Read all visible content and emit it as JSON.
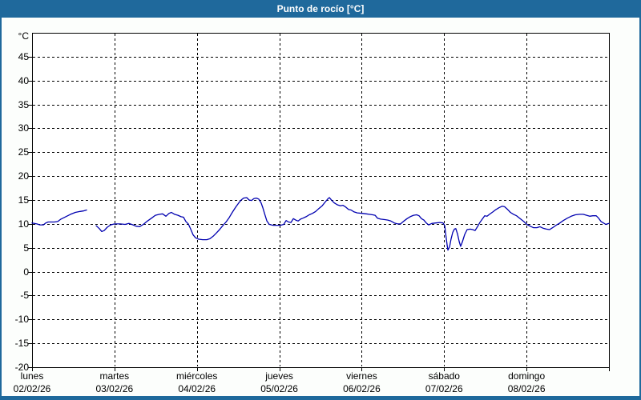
{
  "window": {
    "title": "Punto de rocío [°C]",
    "title_bar_color": "#1f699c",
    "frame_color": "#1f699c",
    "surface_color": "#fcfefc"
  },
  "chart_data": {
    "type": "line",
    "title": "Punto de rocío [°C]",
    "ylabel": "°C",
    "ylim": [
      -20,
      50
    ],
    "ytick_step": 5,
    "ytick_labels": [
      45,
      40,
      35,
      30,
      25,
      20,
      15,
      10,
      5,
      0,
      -5,
      -10,
      -15,
      -20
    ],
    "grid": "dashed",
    "line_color": "#0000b0",
    "plot_bg": "#ffffff",
    "x_axis": {
      "total_hours": 168,
      "days": [
        {
          "name": "lunes",
          "date": "02/02/26"
        },
        {
          "name": "martes",
          "date": "03/02/26"
        },
        {
          "name": "miércoles",
          "date": "04/02/26"
        },
        {
          "name": "jueves",
          "date": "05/02/26"
        },
        {
          "name": "viernes",
          "date": "06/02/26"
        },
        {
          "name": "sábado",
          "date": "07/02/26"
        },
        {
          "name": "domingo",
          "date": "08/02/26"
        }
      ]
    },
    "series": [
      {
        "name": "Punto de rocío",
        "unit": "°C",
        "segments": [
          [
            [
              0,
              10.2
            ],
            [
              1.4,
              10.0
            ],
            [
              2.3,
              9.8
            ],
            [
              3.3,
              9.8
            ],
            [
              4.0,
              10.2
            ],
            [
              4.7,
              10.4
            ],
            [
              6.5,
              10.4
            ],
            [
              7.5,
              10.5
            ],
            [
              8.4,
              11.0
            ],
            [
              9.8,
              11.5
            ],
            [
              11.2,
              12.0
            ],
            [
              12.6,
              12.4
            ],
            [
              14.0,
              12.6
            ],
            [
              14.9,
              12.7
            ],
            [
              15.9,
              12.9
            ]
          ],
          [
            [
              18.7,
              9.6
            ],
            [
              19.6,
              9.0
            ],
            [
              20.3,
              8.4
            ],
            [
              21.0,
              8.6
            ],
            [
              21.9,
              9.3
            ],
            [
              22.9,
              9.8
            ],
            [
              24.0,
              10.0
            ],
            [
              25.7,
              10.0
            ],
            [
              27.1,
              9.9
            ],
            [
              28.2,
              10.1
            ],
            [
              29.4,
              9.8
            ],
            [
              30.3,
              9.5
            ],
            [
              31.3,
              9.4
            ],
            [
              32.4,
              9.9
            ],
            [
              33.6,
              10.6
            ],
            [
              34.8,
              11.2
            ],
            [
              35.9,
              11.8
            ],
            [
              37.1,
              12.0
            ],
            [
              38.0,
              12.1
            ],
            [
              39.0,
              11.6
            ],
            [
              39.9,
              12.2
            ],
            [
              40.6,
              12.4
            ],
            [
              41.5,
              12.0
            ],
            [
              42.5,
              11.8
            ],
            [
              43.4,
              11.5
            ],
            [
              44.1,
              11.4
            ],
            [
              44.8,
              10.5
            ],
            [
              45.5,
              10.0
            ],
            [
              46.2,
              8.9
            ],
            [
              46.9,
              7.7
            ],
            [
              47.6,
              7.1
            ],
            [
              48.5,
              6.8
            ],
            [
              49.7,
              6.7
            ],
            [
              50.9,
              6.7
            ],
            [
              51.8,
              6.9
            ],
            [
              52.7,
              7.4
            ],
            [
              53.7,
              8.1
            ],
            [
              54.6,
              8.8
            ],
            [
              55.5,
              9.6
            ],
            [
              56.5,
              10.4
            ],
            [
              57.4,
              11.3
            ],
            [
              58.3,
              12.4
            ],
            [
              59.3,
              13.5
            ],
            [
              60.2,
              14.4
            ],
            [
              60.9,
              15.0
            ],
            [
              61.6,
              15.4
            ],
            [
              62.5,
              15.5
            ],
            [
              63.2,
              15.0
            ],
            [
              63.9,
              14.9
            ],
            [
              64.6,
              15.3
            ],
            [
              65.3,
              15.4
            ],
            [
              66.0,
              15.2
            ],
            [
              66.7,
              14.4
            ],
            [
              67.2,
              13.4
            ],
            [
              67.7,
              12.2
            ],
            [
              68.4,
              10.6
            ],
            [
              69.1,
              9.9
            ],
            [
              70.2,
              9.7
            ],
            [
              72.3,
              9.7
            ],
            [
              73.3,
              9.9
            ],
            [
              74.0,
              10.7
            ],
            [
              74.7,
              10.4
            ],
            [
              75.4,
              10.3
            ],
            [
              76.1,
              11.1
            ],
            [
              76.8,
              10.8
            ],
            [
              77.5,
              10.6
            ],
            [
              78.2,
              11.0
            ],
            [
              78.9,
              11.2
            ],
            [
              79.8,
              11.5
            ],
            [
              80.7,
              11.9
            ],
            [
              81.7,
              12.2
            ],
            [
              82.6,
              12.6
            ],
            [
              83.5,
              13.2
            ],
            [
              84.5,
              13.8
            ],
            [
              85.4,
              14.6
            ],
            [
              86.1,
              15.2
            ],
            [
              86.6,
              15.5
            ],
            [
              87.3,
              14.9
            ],
            [
              88.0,
              14.4
            ],
            [
              88.9,
              14.0
            ],
            [
              89.8,
              13.8
            ],
            [
              90.5,
              13.9
            ],
            [
              91.2,
              13.6
            ],
            [
              92.2,
              13.0
            ],
            [
              92.9,
              12.9
            ],
            [
              93.8,
              12.5
            ],
            [
              94.7,
              12.3
            ],
            [
              96.1,
              12.2
            ],
            [
              97.3,
              12.1
            ],
            [
              98.2,
              12.0
            ],
            [
              99.2,
              11.9
            ],
            [
              99.9,
              11.8
            ],
            [
              100.6,
              11.2
            ],
            [
              101.5,
              11.0
            ],
            [
              102.7,
              10.9
            ],
            [
              103.6,
              10.8
            ],
            [
              104.5,
              10.6
            ],
            [
              105.5,
              10.2
            ],
            [
              106.4,
              10.0
            ],
            [
              107.3,
              10.0
            ],
            [
              108.3,
              10.6
            ],
            [
              109.2,
              11.1
            ],
            [
              110.1,
              11.5
            ],
            [
              111.1,
              11.8
            ],
            [
              112.0,
              11.9
            ],
            [
              112.7,
              11.7
            ],
            [
              113.4,
              11.1
            ],
            [
              114.1,
              10.8
            ],
            [
              114.8,
              10.2
            ],
            [
              115.5,
              9.8
            ],
            [
              116.4,
              10.1
            ],
            [
              117.6,
              10.2
            ],
            [
              118.8,
              10.3
            ],
            [
              119.7,
              10.2
            ],
            [
              120.2,
              9.6
            ],
            [
              120.4,
              8.2
            ],
            [
              120.9,
              5.5
            ],
            [
              121.1,
              4.5
            ],
            [
              121.6,
              5.2
            ],
            [
              122.0,
              6.8
            ],
            [
              122.5,
              8.2
            ],
            [
              123.0,
              8.9
            ],
            [
              123.4,
              9.0
            ],
            [
              123.9,
              7.9
            ],
            [
              124.4,
              6.3
            ],
            [
              124.8,
              5.3
            ],
            [
              125.3,
              6.2
            ],
            [
              126.0,
              7.8
            ],
            [
              126.7,
              8.8
            ],
            [
              127.6,
              8.9
            ],
            [
              128.3,
              8.8
            ],
            [
              129.0,
              8.6
            ],
            [
              129.7,
              9.4
            ],
            [
              130.4,
              10.3
            ],
            [
              131.1,
              11.0
            ],
            [
              131.8,
              11.7
            ],
            [
              132.5,
              11.6
            ],
            [
              133.2,
              12.0
            ],
            [
              134.2,
              12.5
            ],
            [
              135.1,
              13.0
            ],
            [
              136.0,
              13.4
            ],
            [
              136.9,
              13.7
            ],
            [
              137.6,
              13.6
            ],
            [
              138.5,
              13.0
            ],
            [
              139.3,
              12.4
            ],
            [
              140.2,
              12.0
            ],
            [
              141.1,
              11.7
            ],
            [
              142.3,
              11.0
            ],
            [
              143.2,
              10.5
            ],
            [
              144.1,
              9.9
            ],
            [
              145.1,
              9.5
            ],
            [
              146.0,
              9.2
            ],
            [
              147.0,
              9.2
            ],
            [
              147.9,
              9.4
            ],
            [
              148.8,
              9.1
            ],
            [
              149.8,
              8.9
            ],
            [
              150.7,
              8.8
            ],
            [
              151.6,
              9.2
            ],
            [
              152.6,
              9.7
            ],
            [
              153.5,
              10.1
            ],
            [
              154.7,
              10.7
            ],
            [
              155.9,
              11.2
            ],
            [
              157.0,
              11.6
            ],
            [
              158.2,
              11.9
            ],
            [
              159.4,
              12.0
            ],
            [
              160.5,
              12.0
            ],
            [
              161.5,
              11.8
            ],
            [
              162.4,
              11.6
            ],
            [
              163.3,
              11.7
            ],
            [
              164.3,
              11.7
            ],
            [
              165.0,
              11.2
            ],
            [
              165.7,
              10.5
            ],
            [
              166.4,
              10.2
            ],
            [
              167.1,
              9.9
            ],
            [
              167.5,
              10.0
            ],
            [
              168,
              10.1
            ]
          ]
        ]
      }
    ]
  }
}
